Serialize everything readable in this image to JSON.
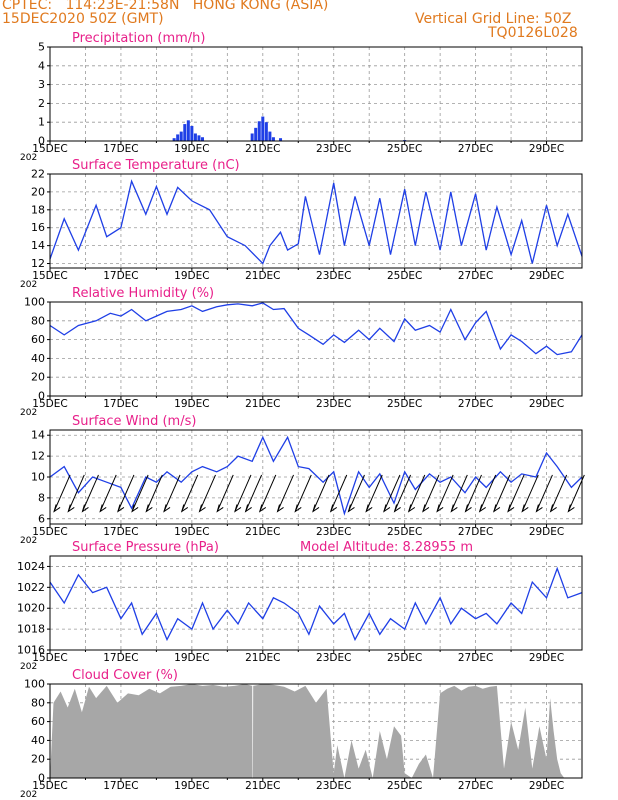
{
  "header": {
    "line1": "CPTEC:   114:23E-21:58N   HONG KONG (ASIA)",
    "line2": "15DEC2020 50Z (GMT)",
    "grid_note": "Vertical Grid Line: 50Z",
    "code": "TQ0126L028"
  },
  "colors": {
    "header": "#e07a1f",
    "title": "#e8208a",
    "series": "#1f3fe6",
    "cloud": "#a7a7a7",
    "grid": "#9a9a9a"
  },
  "x_axis": {
    "start_label": "15DEC",
    "year_stub": "202",
    "tick_labels": [
      "15DEC",
      "17DEC",
      "19DEC",
      "21DEC",
      "23DEC",
      "25DEC",
      "27DEC",
      "29DEC"
    ],
    "day_range": [
      15,
      30
    ]
  },
  "chart_data": [
    {
      "type": "bar",
      "title": "Precipitation (mm/h)",
      "ylim": [
        0,
        5
      ],
      "yticks": [
        0,
        1,
        2,
        3,
        4,
        5
      ],
      "x_unit": "day of Dec 2020",
      "x": [
        18.5,
        18.6,
        18.7,
        18.8,
        18.9,
        19.0,
        19.1,
        19.2,
        19.3,
        20.7,
        20.8,
        20.9,
        21.0,
        21.1,
        21.2,
        21.3,
        21.5,
        25.0
      ],
      "values": [
        0.15,
        0.35,
        0.5,
        0.9,
        1.1,
        0.8,
        0.4,
        0.3,
        0.2,
        0.4,
        0.7,
        1.05,
        1.3,
        1.0,
        0.5,
        0.2,
        0.15,
        0.05
      ]
    },
    {
      "type": "line",
      "title": "Surface Temperature (nC)",
      "ylim": [
        11.5,
        22
      ],
      "yticks": [
        12,
        14,
        16,
        18,
        20,
        22
      ],
      "x_unit": "day of Dec 2020",
      "x": [
        15.0,
        15.4,
        15.8,
        16.3,
        16.6,
        17.0,
        17.3,
        17.7,
        18.0,
        18.3,
        18.6,
        19.0,
        19.5,
        20.0,
        20.5,
        21.0,
        21.2,
        21.5,
        21.7,
        22.0,
        22.2,
        22.6,
        23.0,
        23.3,
        23.6,
        24.0,
        24.3,
        24.6,
        25.0,
        25.3,
        25.6,
        26.0,
        26.3,
        26.6,
        27.0,
        27.3,
        27.6,
        28.0,
        28.3,
        28.6,
        29.0,
        29.3,
        29.6,
        30.0
      ],
      "values": [
        12.5,
        17,
        13.5,
        18.5,
        15,
        16,
        21.2,
        17.5,
        20.6,
        17.5,
        20.5,
        19,
        18,
        15,
        14,
        12,
        14,
        15.5,
        13.5,
        14.2,
        19.5,
        13,
        21,
        14,
        19.5,
        14,
        19.3,
        13,
        20.3,
        14,
        20,
        13.5,
        20,
        14,
        19.8,
        13.5,
        18.3,
        13,
        16.8,
        12,
        18.5,
        14,
        17.5,
        12.8
      ]
    },
    {
      "type": "line",
      "title": "Relative Humidity (%)",
      "ylim": [
        0,
        100
      ],
      "yticks": [
        0,
        20,
        40,
        60,
        80,
        100
      ],
      "x_unit": "day of Dec 2020",
      "x": [
        15.0,
        15.4,
        15.8,
        16.3,
        16.7,
        17.0,
        17.3,
        17.7,
        18.0,
        18.3,
        18.7,
        19.0,
        19.3,
        19.7,
        20.0,
        20.3,
        20.7,
        21.0,
        21.3,
        21.6,
        22.0,
        22.3,
        22.7,
        23.0,
        23.3,
        23.7,
        24.0,
        24.3,
        24.7,
        25.0,
        25.3,
        25.7,
        26.0,
        26.3,
        26.7,
        27.0,
        27.3,
        27.7,
        28.0,
        28.3,
        28.7,
        29.0,
        29.3,
        29.7,
        30.0
      ],
      "values": [
        75,
        65,
        75,
        80,
        88,
        85,
        92,
        80,
        85,
        90,
        92,
        96,
        90,
        95,
        97,
        98,
        96,
        99,
        92,
        93,
        72,
        65,
        55,
        65,
        57,
        70,
        60,
        72,
        58,
        82,
        70,
        75,
        68,
        92,
        60,
        78,
        90,
        50,
        65,
        58,
        45,
        53,
        44,
        47,
        65
      ]
    },
    {
      "type": "line",
      "title": "Surface Wind (m/s)",
      "ylim": [
        5.5,
        14.5
      ],
      "yticks": [
        6,
        8,
        10,
        12,
        14
      ],
      "x_unit": "day of Dec 2020",
      "x": [
        15.0,
        15.4,
        15.8,
        16.2,
        16.6,
        17.0,
        17.3,
        17.7,
        18.0,
        18.3,
        18.7,
        19.0,
        19.3,
        19.7,
        20.0,
        20.3,
        20.7,
        21.0,
        21.3,
        21.7,
        22.0,
        22.3,
        22.7,
        23.0,
        23.3,
        23.7,
        24.0,
        24.3,
        24.7,
        25.0,
        25.3,
        25.7,
        26.0,
        26.3,
        26.7,
        27.0,
        27.3,
        27.7,
        28.0,
        28.3,
        28.7,
        29.0,
        29.3,
        29.7,
        30.0
      ],
      "values": [
        10,
        11,
        8.5,
        10,
        9.5,
        9,
        7,
        10,
        9.5,
        10.5,
        9.5,
        10.5,
        11,
        10.5,
        11,
        12,
        11.5,
        13.8,
        11.5,
        13.8,
        11,
        10.8,
        9.5,
        10.5,
        6.5,
        10.5,
        9,
        10.3,
        7.5,
        10.5,
        8.8,
        10.3,
        9.5,
        10,
        8.5,
        10,
        9,
        10.5,
        9.5,
        10.3,
        10,
        12.3,
        11,
        9,
        10
      ],
      "arrows_x": [
        15.2,
        15.6,
        16.0,
        16.5,
        17.0,
        17.4,
        17.8,
        18.3,
        18.8,
        19.3,
        19.8,
        20.3,
        20.6,
        21.0,
        21.5,
        22.0,
        22.5,
        23.0,
        23.5,
        24.0,
        24.5,
        24.8,
        25.2,
        25.6,
        26.0,
        26.4,
        26.8,
        27.2,
        27.6,
        28.0,
        28.4,
        28.8,
        29.2,
        29.7
      ]
    },
    {
      "type": "line",
      "title": "Surface Pressure (hPa)",
      "subtitle": "Model Altitude: 8.28955 m",
      "ylim": [
        1016,
        1025
      ],
      "yticks": [
        1016,
        1018,
        1020,
        1022,
        1024
      ],
      "x_unit": "day of Dec 2020",
      "x": [
        15.0,
        15.4,
        15.8,
        16.2,
        16.6,
        17.0,
        17.3,
        17.6,
        18.0,
        18.3,
        18.6,
        19.0,
        19.3,
        19.6,
        20.0,
        20.3,
        20.6,
        21.0,
        21.3,
        21.6,
        22.0,
        22.3,
        22.6,
        23.0,
        23.3,
        23.6,
        24.0,
        24.3,
        24.6,
        25.0,
        25.3,
        25.6,
        26.0,
        26.3,
        26.6,
        27.0,
        27.3,
        27.6,
        28.0,
        28.3,
        28.6,
        29.0,
        29.3,
        29.6,
        30.0
      ],
      "values": [
        1022.5,
        1020.5,
        1023.2,
        1021.5,
        1022,
        1019,
        1020.5,
        1017.5,
        1019.5,
        1017,
        1019,
        1018,
        1020.5,
        1018,
        1019.8,
        1018.5,
        1020.5,
        1019,
        1021,
        1020.5,
        1019.5,
        1017.5,
        1020.2,
        1018.5,
        1019.5,
        1017,
        1019.5,
        1017.5,
        1019,
        1018,
        1020.5,
        1018.5,
        1021,
        1018.5,
        1020,
        1019,
        1019.5,
        1018.5,
        1020.5,
        1019.5,
        1022.5,
        1021,
        1023.8,
        1021,
        1021.5
      ]
    },
    {
      "type": "area",
      "title": "Cloud Cover (%)",
      "ylim": [
        0,
        100
      ],
      "yticks": [
        0,
        20,
        40,
        60,
        80,
        100
      ],
      "x_unit": "day of Dec 2020",
      "x": [
        15.0,
        15.1,
        15.3,
        15.5,
        15.7,
        15.9,
        16.1,
        16.3,
        16.6,
        16.9,
        17.2,
        17.5,
        17.8,
        18.1,
        18.4,
        18.7,
        19.0,
        19.3,
        19.6,
        19.9,
        20.2,
        20.5,
        20.7,
        20.71,
        20.72,
        20.73,
        21.0,
        21.3,
        21.6,
        21.9,
        22.2,
        22.5,
        22.8,
        23.0,
        23.1,
        23.3,
        23.5,
        23.7,
        23.9,
        24.1,
        24.3,
        24.5,
        24.7,
        24.9,
        25.0,
        25.2,
        25.4,
        25.6,
        25.8,
        26.0,
        26.2,
        26.4,
        26.6,
        26.8,
        27.0,
        27.2,
        27.4,
        27.6,
        27.8,
        28.0,
        28.2,
        28.4,
        28.6,
        28.8,
        29.0,
        29.1,
        29.2,
        29.3,
        29.4,
        29.5,
        29.6,
        30.0
      ],
      "values": [
        0,
        80,
        92,
        75,
        95,
        70,
        97,
        85,
        98,
        80,
        90,
        88,
        95,
        90,
        97,
        98,
        100,
        98,
        99,
        97,
        98,
        100,
        98,
        0,
        0,
        98,
        100,
        99,
        97,
        92,
        98,
        80,
        95,
        5,
        35,
        0,
        40,
        10,
        30,
        0,
        50,
        20,
        55,
        45,
        5,
        0,
        15,
        25,
        0,
        90,
        95,
        98,
        93,
        97,
        98,
        95,
        97,
        98,
        10,
        60,
        30,
        75,
        10,
        55,
        20,
        85,
        50,
        20,
        5,
        0,
        0,
        0
      ]
    }
  ]
}
